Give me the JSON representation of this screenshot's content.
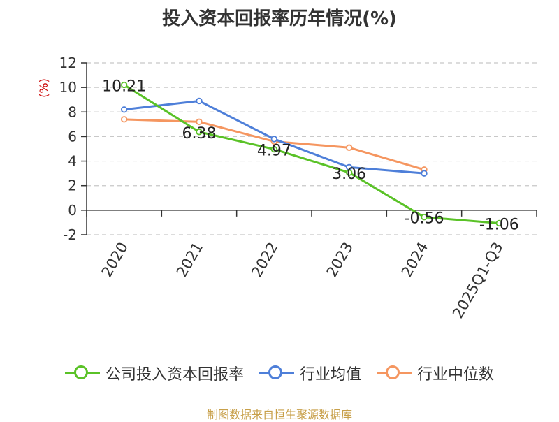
{
  "chart_data": {
    "type": "line",
    "title": "投入资本回报率历年情况(%)",
    "ylabel": "(%)",
    "xlabel": "",
    "categories": [
      "2020",
      "2021",
      "2022",
      "2023",
      "2024",
      "2025Q1-Q3"
    ],
    "yticks": [
      "12",
      "10",
      "8",
      "6",
      "4",
      "2",
      "0",
      "-2"
    ],
    "ylim": [
      -2,
      12
    ],
    "grid": true,
    "legend_position": "bottom",
    "series": [
      {
        "name": "公司投入资本回报率",
        "color": "#5ac227",
        "values": [
          10.21,
          6.38,
          4.97,
          3.06,
          -0.56,
          -1.06
        ],
        "labels": [
          "10.21",
          "6.38",
          "4.97",
          "3.06",
          "-0.56",
          "-1.06"
        ],
        "show_labels": true
      },
      {
        "name": "行业均值",
        "color": "#4e7fd9",
        "values": [
          8.2,
          8.9,
          5.8,
          3.5,
          3.0,
          null
        ],
        "show_labels": false
      },
      {
        "name": "行业中位数",
        "color": "#f59660",
        "values": [
          7.4,
          7.2,
          5.6,
          5.1,
          3.3,
          null
        ],
        "show_labels": false
      }
    ]
  },
  "source": "制图数据来自恒生聚源数据库"
}
